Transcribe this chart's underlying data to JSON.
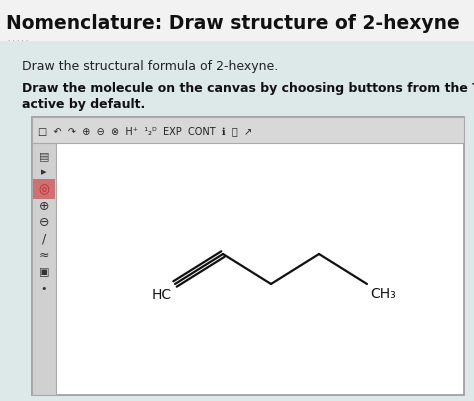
{
  "title": "Nomenclature: Draw structure of 2-hexyne",
  "subtitle1": "Draw the structural formula of 2-hexyne.",
  "subtitle2": "Draw the molecule on the canvas by choosing buttons from the Tools (",
  "subtitle2b": "active by default.",
  "page_bg": "#dde8e8",
  "title_bg": "#f0f0f0",
  "body_bg": "#e0e8e8",
  "canvas_bg": "#ffffff",
  "canvas_border": "#999999",
  "toolbar_bg": "#d8d8d8",
  "sidebar_bg": "#d0d0d0",
  "mol_color": "#111111",
  "label_HC": "HC",
  "label_CH3": "CH₃"
}
